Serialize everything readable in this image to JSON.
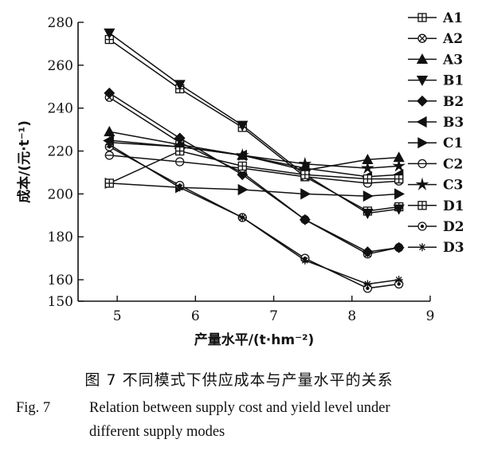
{
  "chart_data": {
    "type": "line",
    "ylabel": "成本/(元·t⁻¹)",
    "xlabel": "产量水平/(t·hm⁻²)",
    "xlim": [
      4.5,
      9
    ],
    "ylim": [
      150,
      280
    ],
    "xticks": [
      5,
      6,
      7,
      8,
      9
    ],
    "yticks": [
      150,
      160,
      180,
      200,
      220,
      240,
      260,
      280
    ],
    "legend_position": "right",
    "x": [
      4.9,
      5.8,
      6.6,
      7.4,
      8.2,
      8.6
    ],
    "series": [
      {
        "name": "A1",
        "marker": "square-cross",
        "values": [
          272,
          249,
          231,
          208,
          192,
          194
        ]
      },
      {
        "name": "A2",
        "marker": "circle-cross",
        "values": [
          245,
          224,
          210,
          188,
          172,
          175
        ]
      },
      {
        "name": "A3",
        "marker": "triangle-up",
        "values": [
          229,
          223,
          218,
          211,
          216,
          217
        ]
      },
      {
        "name": "B1",
        "marker": "triangle-down",
        "values": [
          275,
          251,
          232,
          209,
          191,
          193
        ]
      },
      {
        "name": "B2",
        "marker": "diamond",
        "values": [
          247,
          226,
          209,
          188,
          173,
          175
        ]
      },
      {
        "name": "B3",
        "marker": "triangle-left",
        "values": [
          225,
          222,
          218,
          212,
          208,
          209
        ]
      },
      {
        "name": "C1",
        "marker": "triangle-right",
        "values": [
          205,
          203,
          202,
          200,
          199,
          200
        ]
      },
      {
        "name": "C2",
        "marker": "circle-minus",
        "values": [
          218,
          215,
          212,
          208,
          205,
          206
        ]
      },
      {
        "name": "C3",
        "marker": "star",
        "values": [
          224,
          222,
          218,
          214,
          212,
          213
        ]
      },
      {
        "name": "D1",
        "marker": "square-plus",
        "values": [
          205,
          220,
          213,
          209,
          207,
          207
        ]
      },
      {
        "name": "D2",
        "marker": "circle-dot",
        "values": [
          222,
          204,
          189,
          170,
          156,
          158
        ]
      },
      {
        "name": "D3",
        "marker": "asterisk",
        "values": [
          223,
          203,
          189,
          169,
          158,
          160
        ]
      }
    ]
  },
  "caption": {
    "cn": "图 7  不同模式下供应成本与产量水平的关系",
    "en_label": "Fig. 7",
    "en_line1": "Relation between supply cost and yield level under",
    "en_line2": "different supply modes"
  }
}
